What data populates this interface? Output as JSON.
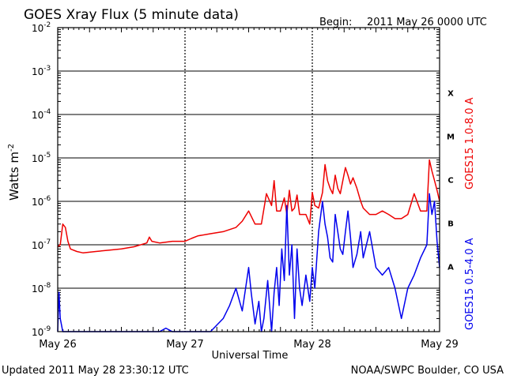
{
  "title": "GOES Xray Flux (5 minute data)",
  "begin_label": "Begin:",
  "begin_value": "2011 May 26 0000 UTC",
  "ylabel_base": "Watts m",
  "ylabel_exp": "-2",
  "xlabel": "Universal Time",
  "updated_text": "Updated 2011 May 28 23:30:12 UTC",
  "source_text": "NOAA/SWPC Boulder, CO USA",
  "colors": {
    "long_channel": "#ee0000",
    "short_channel": "#0000ee",
    "grid": "#000000",
    "background": "#ffffff"
  },
  "chart_data": {
    "type": "line",
    "title": "GOES Xray Flux (5 minute data)",
    "xlabel": "Universal Time",
    "ylabel": "Watts m-2",
    "yscale": "log",
    "ylim_exp": [
      -9,
      -2
    ],
    "xlim_days": [
      0,
      3
    ],
    "x_ticks": [
      "May 26",
      "May 27",
      "May 28",
      "May 29"
    ],
    "y_ticks": [
      {
        "exp": -9,
        "base": "10",
        "sup": "-9"
      },
      {
        "exp": -8,
        "base": "10",
        "sup": "-8"
      },
      {
        "exp": -7,
        "base": "10",
        "sup": "-7"
      },
      {
        "exp": -6,
        "base": "10",
        "sup": "-6"
      },
      {
        "exp": -5,
        "base": "10",
        "sup": "-5"
      },
      {
        "exp": -4,
        "base": "10",
        "sup": "-4"
      },
      {
        "exp": -3,
        "base": "10",
        "sup": "-3"
      },
      {
        "exp": -2,
        "base": "10",
        "sup": "-2"
      }
    ],
    "flare_classes": [
      {
        "label": "X",
        "exp": -3.5
      },
      {
        "label": "M",
        "exp": -4.5
      },
      {
        "label": "C",
        "exp": -5.5
      },
      {
        "label": "B",
        "exp": -6.5
      },
      {
        "label": "A",
        "exp": -7.5
      }
    ],
    "grid": true,
    "series": [
      {
        "name": "GOES15 1.0-8.0 A",
        "color": "#ee0000",
        "x": [
          0,
          0.02,
          0.04,
          0.06,
          0.08,
          0.1,
          0.15,
          0.2,
          0.3,
          0.4,
          0.5,
          0.6,
          0.7,
          0.72,
          0.74,
          0.8,
          0.9,
          1.0,
          1.05,
          1.1,
          1.2,
          1.3,
          1.4,
          1.45,
          1.5,
          1.55,
          1.6,
          1.64,
          1.68,
          1.7,
          1.72,
          1.75,
          1.78,
          1.8,
          1.82,
          1.84,
          1.86,
          1.88,
          1.9,
          1.92,
          1.95,
          1.98,
          2.0,
          2.02,
          2.05,
          2.08,
          2.1,
          2.12,
          2.14,
          2.16,
          2.18,
          2.2,
          2.22,
          2.24,
          2.26,
          2.28,
          2.3,
          2.32,
          2.35,
          2.38,
          2.4,
          2.45,
          2.5,
          2.55,
          2.6,
          2.65,
          2.7,
          2.75,
          2.8,
          2.85,
          2.9,
          2.92,
          2.94,
          2.96,
          2.98,
          3.0
        ],
        "y": [
          9e-08,
          1e-07,
          3e-07,
          2.5e-07,
          1.2e-07,
          8e-08,
          7e-08,
          6.5e-08,
          7e-08,
          7.5e-08,
          8e-08,
          9e-08,
          1.1e-07,
          1.5e-07,
          1.2e-07,
          1.1e-07,
          1.2e-07,
          1.2e-07,
          1.4e-07,
          1.6e-07,
          1.8e-07,
          2e-07,
          2.5e-07,
          3.5e-07,
          6e-07,
          3e-07,
          3e-07,
          1.5e-06,
          8e-07,
          3e-06,
          6e-07,
          6e-07,
          1.2e-06,
          5e-07,
          1.8e-06,
          6e-07,
          7e-07,
          1.4e-06,
          5e-07,
          5e-07,
          5e-07,
          3e-07,
          1.6e-06,
          8e-07,
          7e-07,
          1.6e-06,
          7e-06,
          3e-06,
          2e-06,
          1.5e-06,
          4e-06,
          2e-06,
          1.5e-06,
          3e-06,
          6e-06,
          4e-06,
          2.5e-06,
          3.5e-06,
          2e-06,
          1e-06,
          7e-07,
          5e-07,
          5e-07,
          6e-07,
          5e-07,
          4e-07,
          4e-07,
          5e-07,
          1.5e-06,
          6e-07,
          6e-07,
          9e-06,
          5e-06,
          3e-06,
          1.8e-06,
          1e-06
        ]
      },
      {
        "name": "GOES15 0.5-4.0 A",
        "color": "#0000ee",
        "x": [
          0,
          0.01,
          0.02,
          0.04,
          0.06,
          0.5,
          0.8,
          0.85,
          0.9,
          1.0,
          1.2,
          1.3,
          1.35,
          1.4,
          1.45,
          1.5,
          1.52,
          1.55,
          1.58,
          1.6,
          1.62,
          1.65,
          1.68,
          1.7,
          1.72,
          1.74,
          1.76,
          1.78,
          1.8,
          1.82,
          1.84,
          1.86,
          1.88,
          1.9,
          1.92,
          1.95,
          1.98,
          2.0,
          2.02,
          2.05,
          2.08,
          2.1,
          2.12,
          2.14,
          2.16,
          2.18,
          2.2,
          2.22,
          2.24,
          2.26,
          2.28,
          2.3,
          2.32,
          2.35,
          2.38,
          2.4,
          2.45,
          2.5,
          2.55,
          2.6,
          2.65,
          2.7,
          2.75,
          2.8,
          2.85,
          2.9,
          2.92,
          2.94,
          2.96,
          2.98,
          3.0
        ],
        "y": [
          1e-09,
          8e-09,
          2e-09,
          1e-09,
          1e-09,
          1e-09,
          1e-09,
          1.2e-09,
          1e-09,
          1e-09,
          1e-09,
          2e-09,
          4e-09,
          1e-08,
          3e-09,
          3e-08,
          8e-09,
          1.5e-09,
          5e-09,
          1e-09,
          2e-09,
          1.5e-08,
          1e-09,
          8e-09,
          3e-08,
          4e-09,
          8e-08,
          1.5e-08,
          8e-07,
          2e-08,
          1e-07,
          2e-09,
          8e-08,
          1e-08,
          4e-09,
          2e-08,
          5e-09,
          3e-08,
          1e-08,
          2e-07,
          1e-06,
          3e-07,
          1.5e-07,
          5e-08,
          4e-08,
          5e-07,
          2e-07,
          8e-08,
          6e-08,
          2e-07,
          6e-07,
          1.5e-07,
          3e-08,
          6e-08,
          2e-07,
          5e-08,
          2e-07,
          3e-08,
          2e-08,
          3e-08,
          1e-08,
          2e-09,
          1e-08,
          2e-08,
          5e-08,
          1e-07,
          1.5e-06,
          5e-07,
          1e-06,
          1.2e-07,
          3e-08
        ]
      }
    ]
  }
}
